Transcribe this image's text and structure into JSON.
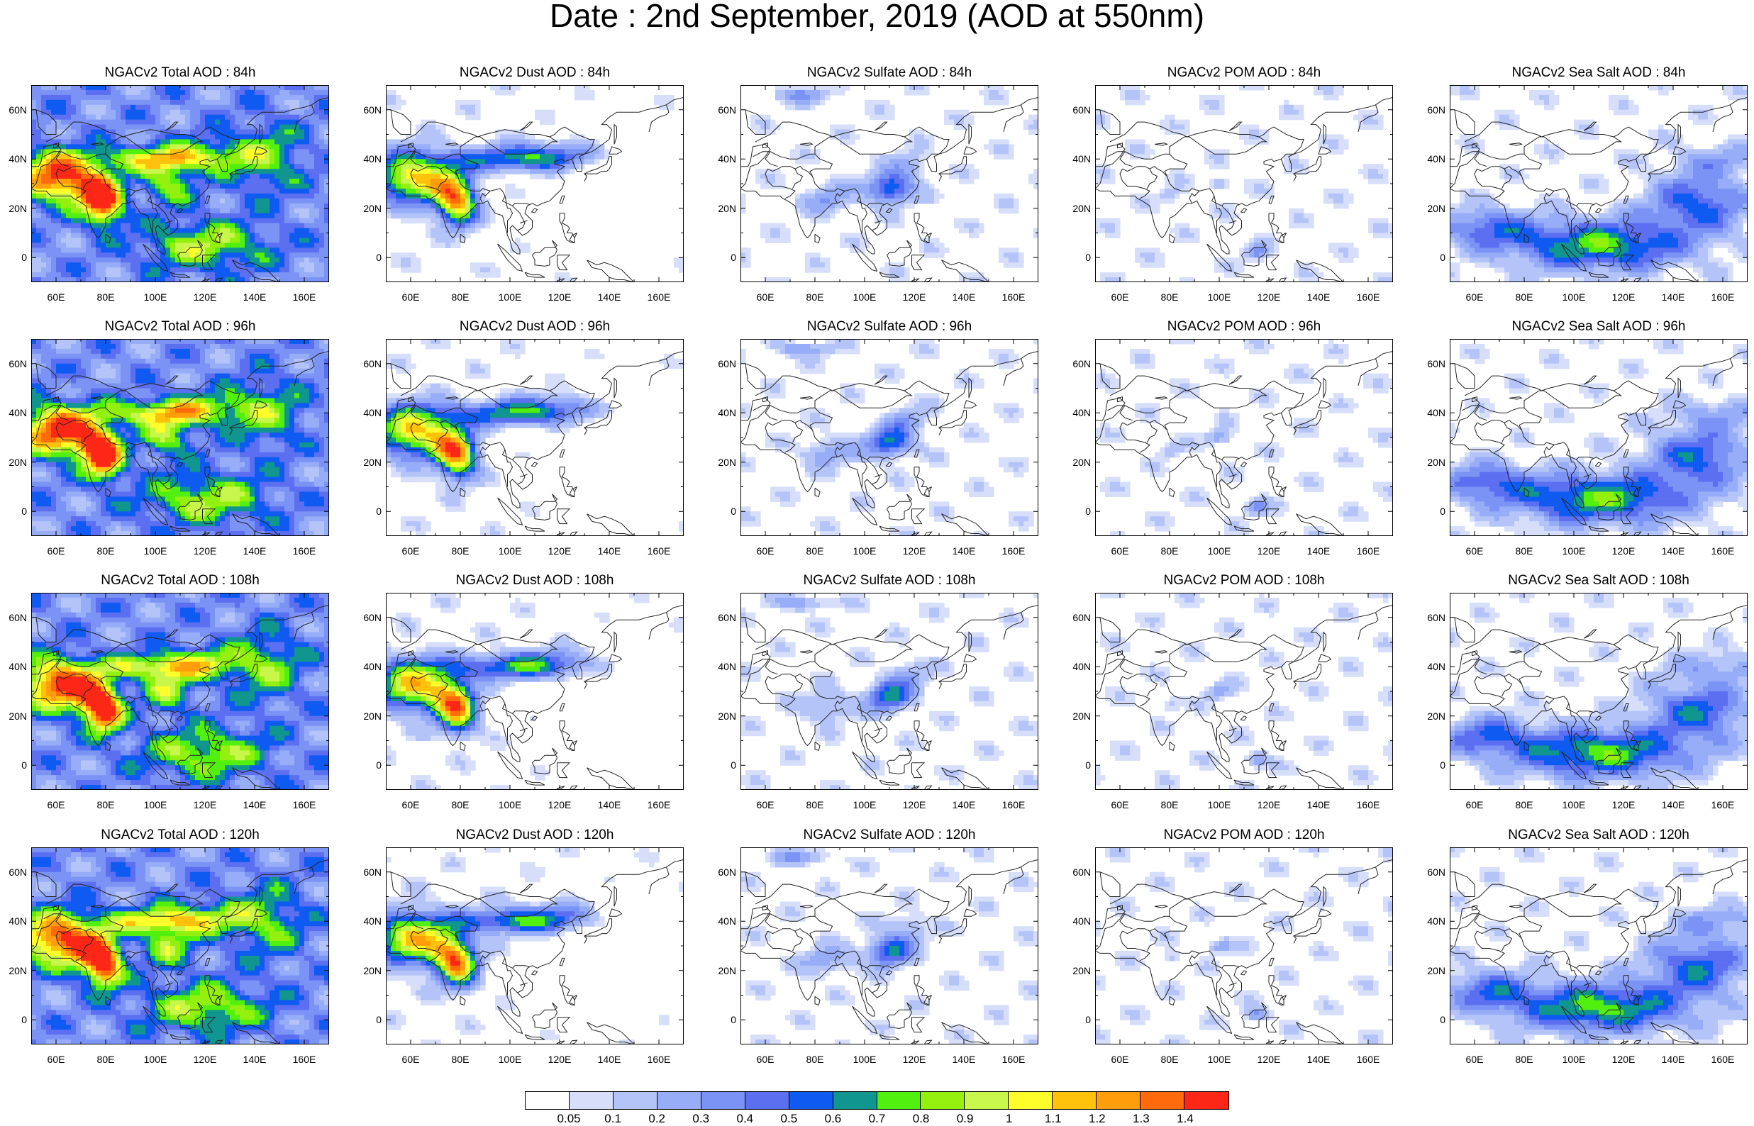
{
  "title": "Date : 2nd September, 2019 (AOD at 550nm)",
  "panels": [
    {
      "title": "NGACv2 Total AOD : 84h",
      "species": "total",
      "lead_hours": 84
    },
    {
      "title": "NGACv2 Dust AOD : 84h",
      "species": "dust",
      "lead_hours": 84
    },
    {
      "title": "NGACv2 Sulfate AOD : 84h",
      "species": "sulfate",
      "lead_hours": 84
    },
    {
      "title": "NGACv2 POM AOD : 84h",
      "species": "pom",
      "lead_hours": 84
    },
    {
      "title": "NGACv2 Sea Salt AOD : 84h",
      "species": "seasalt",
      "lead_hours": 84
    },
    {
      "title": "NGACv2 Total AOD : 96h",
      "species": "total",
      "lead_hours": 96
    },
    {
      "title": "NGACv2 Dust AOD : 96h",
      "species": "dust",
      "lead_hours": 96
    },
    {
      "title": "NGACv2 Sulfate AOD : 96h",
      "species": "sulfate",
      "lead_hours": 96
    },
    {
      "title": "NGACv2 POM AOD : 96h",
      "species": "pom",
      "lead_hours": 96
    },
    {
      "title": "NGACv2 Sea Salt AOD : 96h",
      "species": "seasalt",
      "lead_hours": 96
    },
    {
      "title": "NGACv2 Total AOD : 108h",
      "species": "total",
      "lead_hours": 108
    },
    {
      "title": "NGACv2 Dust AOD : 108h",
      "species": "dust",
      "lead_hours": 108
    },
    {
      "title": "NGACv2 Sulfate AOD : 108h",
      "species": "sulfate",
      "lead_hours": 108
    },
    {
      "title": "NGACv2 POM AOD : 108h",
      "species": "pom",
      "lead_hours": 108
    },
    {
      "title": "NGACv2 Sea Salt AOD : 108h",
      "species": "seasalt",
      "lead_hours": 108
    },
    {
      "title": "NGACv2 Total AOD : 120h",
      "species": "total",
      "lead_hours": 120
    },
    {
      "title": "NGACv2 Dust AOD : 120h",
      "species": "dust",
      "lead_hours": 120
    },
    {
      "title": "NGACv2 Sulfate AOD : 120h",
      "species": "sulfate",
      "lead_hours": 120
    },
    {
      "title": "NGACv2 POM AOD : 120h",
      "species": "pom",
      "lead_hours": 120
    },
    {
      "title": "NGACv2 Sea Salt  AOD : 120h",
      "species": "seasalt",
      "lead_hours": 120
    }
  ],
  "map": {
    "lon_range": [
      50,
      170
    ],
    "lat_range": [
      -10,
      70
    ],
    "lat_ticks": [
      "60N",
      "40N",
      "20N",
      "0"
    ],
    "lat_tick_values": [
      60,
      40,
      20,
      0
    ],
    "lon_ticks": [
      "60E",
      "80E",
      "100E",
      "120E",
      "140E",
      "160E"
    ],
    "lon_tick_values": [
      60,
      80,
      100,
      120,
      140,
      160
    ]
  },
  "colorbar": {
    "labels": [
      "0.05",
      "0.1",
      "0.2",
      "0.3",
      "0.4",
      "0.5",
      "0.6",
      "0.7",
      "0.8",
      "0.9",
      "1",
      "1.1",
      "1.2",
      "1.3",
      "1.4"
    ],
    "colors": [
      "#ffffff",
      "#d6defa",
      "#b4c4f8",
      "#97adf7",
      "#7b93f5",
      "#5b6ff0",
      "#0f5bf2",
      "#10958f",
      "#52f00f",
      "#93f00f",
      "#c8f64a",
      "#fffe2a",
      "#ffc20c",
      "#ff9d0a",
      "#ff6a0a",
      "#fc2716"
    ]
  }
}
